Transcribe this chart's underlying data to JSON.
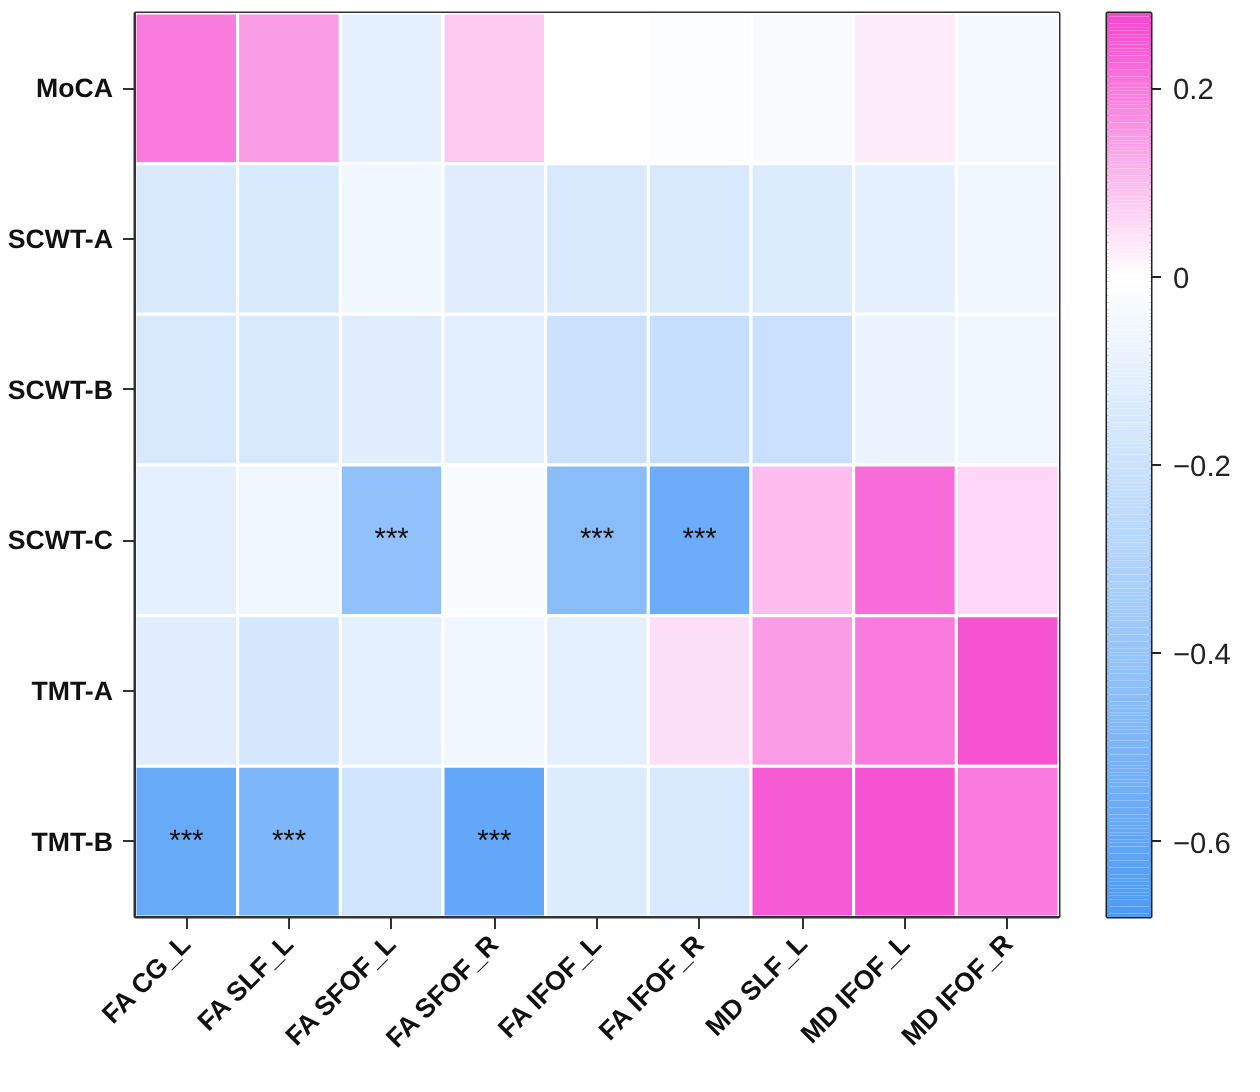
{
  "chart_data": {
    "type": "heatmap",
    "categories": [
      "FA CG_L",
      "FA SLF_L",
      "FA SFOF_L",
      "FA SFOF_R",
      "FA IFOF_L",
      "FA IFOF_R",
      "MD SLF_L",
      "MD IFOF_L",
      "MD IFOF_R"
    ],
    "y_categories": [
      "MoCA",
      "SCWT-A",
      "SCWT-B",
      "SCWT-C",
      "TMT-A",
      "TMT-B"
    ],
    "cells": [
      [
        0.2,
        0.15,
        -0.1,
        0.08,
        0.0,
        -0.01,
        -0.02,
        0.03,
        -0.04
      ],
      [
        -0.15,
        -0.15,
        -0.05,
        -0.12,
        -0.15,
        -0.15,
        -0.13,
        -0.1,
        -0.06
      ],
      [
        -0.15,
        -0.15,
        -0.12,
        -0.11,
        -0.2,
        -0.22,
        -0.21,
        -0.08,
        -0.06
      ],
      [
        -0.1,
        -0.06,
        -0.42,
        -0.02,
        -0.45,
        -0.56,
        0.1,
        0.22,
        0.06
      ],
      [
        -0.12,
        -0.16,
        -0.1,
        -0.05,
        -0.1,
        0.05,
        0.15,
        0.2,
        0.26
      ],
      [
        -0.58,
        -0.5,
        -0.18,
        -0.6,
        -0.13,
        -0.15,
        0.25,
        0.26,
        0.2
      ]
    ],
    "cell_labels": [
      [
        null,
        null,
        null,
        null,
        null,
        null,
        null,
        null,
        null
      ],
      [
        null,
        null,
        null,
        null,
        null,
        null,
        null,
        null,
        null
      ],
      [
        null,
        null,
        null,
        null,
        null,
        null,
        null,
        null,
        null
      ],
      [
        null,
        null,
        "***",
        null,
        "***",
        "***",
        null,
        null,
        null
      ],
      [
        null,
        null,
        null,
        null,
        null,
        null,
        null,
        null,
        null
      ],
      [
        "***",
        "***",
        null,
        "***",
        null,
        null,
        null,
        null,
        null
      ]
    ],
    "clim": [
      -0.68,
      0.28
    ],
    "cticks": [
      0.2,
      0,
      -0.2,
      -0.4,
      -0.6
    ]
  }
}
